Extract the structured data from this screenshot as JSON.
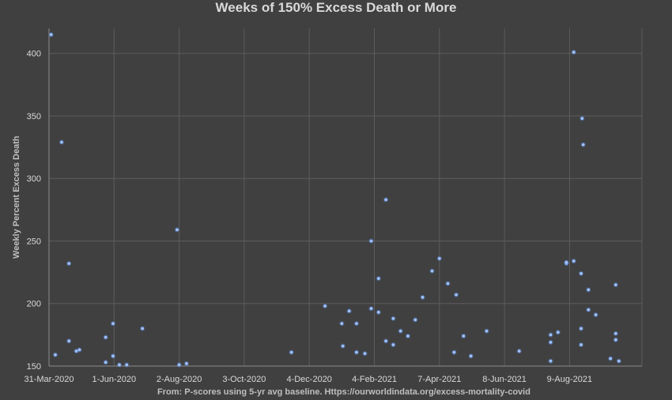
{
  "chart_data": {
    "type": "scatter",
    "title": "Weeks of 150% Excess Death or More",
    "xlabel": "From: P-scores using 5-yr avg baseline. Https://ourworldindata.org/excess-mortality-covid",
    "ylabel": "Weekly Percent Excess Death",
    "x_axis_type": "date",
    "xlim": [
      "2020-03-31",
      "2021-10-17"
    ],
    "ylim": [
      150,
      420
    ],
    "x_ticks": [
      "2020-03-31",
      "2020-06-01",
      "2020-08-02",
      "2020-10-03",
      "2020-12-04",
      "2021-02-04",
      "2021-04-07",
      "2021-06-08",
      "2021-08-09"
    ],
    "x_tick_labels": [
      "31-Mar-2020",
      "1-Jun-2020",
      "2-Aug-2020",
      "3-Oct-2020",
      "4-Dec-2020",
      "4-Feb-2021",
      "7-Apr-2021",
      "8-Jun-2021",
      "9-Aug-2021"
    ],
    "y_ticks": [
      150,
      200,
      250,
      300,
      350,
      400
    ],
    "y_tick_labels": [
      "150",
      "200",
      "250",
      "300",
      "350",
      "400"
    ],
    "grid": true,
    "marker_color": "#5b8ee6",
    "series": [
      {
        "points": [
          [
            "2020-04-02",
            415
          ],
          [
            "2020-04-06",
            159
          ],
          [
            "2020-04-12",
            329
          ],
          [
            "2020-04-19",
            232
          ],
          [
            "2020-04-19",
            170
          ],
          [
            "2020-04-26",
            162
          ],
          [
            "2020-04-29",
            163
          ],
          [
            "2020-05-24",
            173
          ],
          [
            "2020-05-31",
            184
          ],
          [
            "2020-05-31",
            158
          ],
          [
            "2020-05-24",
            153
          ],
          [
            "2020-06-06",
            151
          ],
          [
            "2020-06-13",
            151
          ],
          [
            "2020-06-28",
            180
          ],
          [
            "2020-07-31",
            259
          ],
          [
            "2020-08-02",
            151
          ],
          [
            "2020-08-09",
            152
          ],
          [
            "2020-11-17",
            161
          ],
          [
            "2020-12-19",
            198
          ],
          [
            "2021-01-04",
            184
          ],
          [
            "2021-01-05",
            166
          ],
          [
            "2021-01-11",
            194
          ],
          [
            "2021-01-18",
            184
          ],
          [
            "2021-01-18",
            161
          ],
          [
            "2021-01-26",
            160
          ],
          [
            "2021-02-01",
            196
          ],
          [
            "2021-02-01",
            250
          ],
          [
            "2021-02-08",
            220
          ],
          [
            "2021-02-08",
            193
          ],
          [
            "2021-02-15",
            283
          ],
          [
            "2021-02-15",
            170
          ],
          [
            "2021-02-22",
            167
          ],
          [
            "2021-02-22",
            188
          ],
          [
            "2021-03-01",
            178
          ],
          [
            "2021-03-08",
            174
          ],
          [
            "2021-03-15",
            187
          ],
          [
            "2021-03-22",
            205
          ],
          [
            "2021-03-31",
            226
          ],
          [
            "2021-04-07",
            236
          ],
          [
            "2021-04-15",
            216
          ],
          [
            "2021-04-21",
            161
          ],
          [
            "2021-04-23",
            207
          ],
          [
            "2021-04-30",
            174
          ],
          [
            "2021-05-07",
            158
          ],
          [
            "2021-05-22",
            178
          ],
          [
            "2021-06-22",
            162
          ],
          [
            "2021-07-22",
            175
          ],
          [
            "2021-07-22",
            169
          ],
          [
            "2021-07-22",
            154
          ],
          [
            "2021-07-29",
            177
          ],
          [
            "2021-08-06",
            232
          ],
          [
            "2021-08-06",
            233
          ],
          [
            "2021-08-13",
            401
          ],
          [
            "2021-08-13",
            234
          ],
          [
            "2021-08-20",
            224
          ],
          [
            "2021-08-20",
            180
          ],
          [
            "2021-08-20",
            167
          ],
          [
            "2021-08-21",
            348
          ],
          [
            "2021-08-22",
            327
          ],
          [
            "2021-08-27",
            211
          ],
          [
            "2021-08-27",
            195
          ],
          [
            "2021-09-03",
            191
          ],
          [
            "2021-09-17",
            156
          ],
          [
            "2021-09-22",
            215
          ],
          [
            "2021-09-22",
            176
          ],
          [
            "2021-09-22",
            171
          ],
          [
            "2021-09-25",
            154
          ]
        ]
      }
    ]
  }
}
